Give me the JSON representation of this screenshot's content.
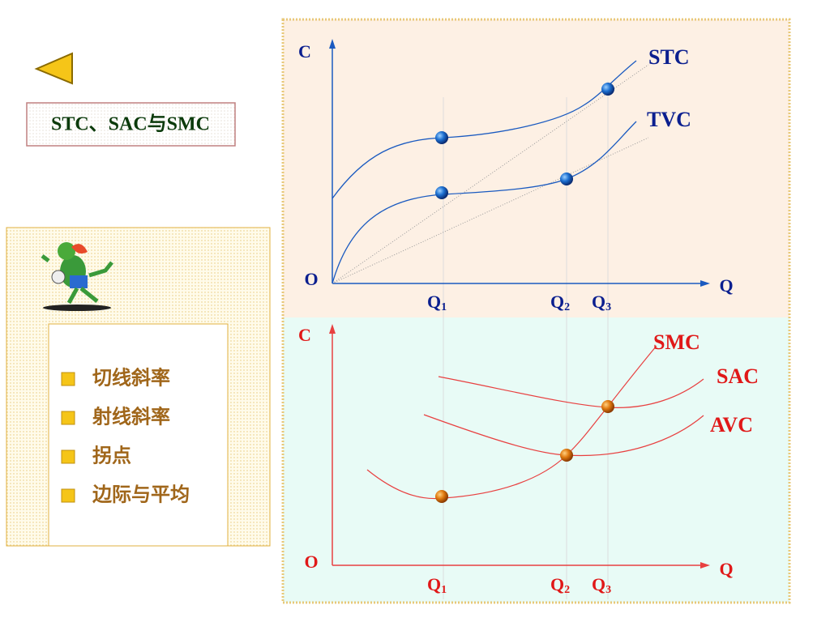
{
  "title": "STC、SAC与SMC",
  "bullets": [
    "切线斜率",
    "射线斜率",
    "拐点",
    "边际与平均"
  ],
  "top_diagram": {
    "y_axis": "C",
    "origin": "O",
    "x_axis": "Q",
    "x_marks": [
      {
        "main": "Q",
        "sub": "1"
      },
      {
        "main": "Q",
        "sub": "2"
      },
      {
        "main": "Q",
        "sub": "3"
      }
    ],
    "curves": [
      "STC",
      "TVC"
    ]
  },
  "bottom_diagram": {
    "y_axis": "C",
    "origin": "O",
    "x_axis": "Q",
    "x_marks": [
      {
        "main": "Q",
        "sub": "1"
      },
      {
        "main": "Q",
        "sub": "2"
      },
      {
        "main": "Q",
        "sub": "3"
      }
    ],
    "curves": [
      "SMC",
      "SAC",
      "AVC"
    ]
  }
}
